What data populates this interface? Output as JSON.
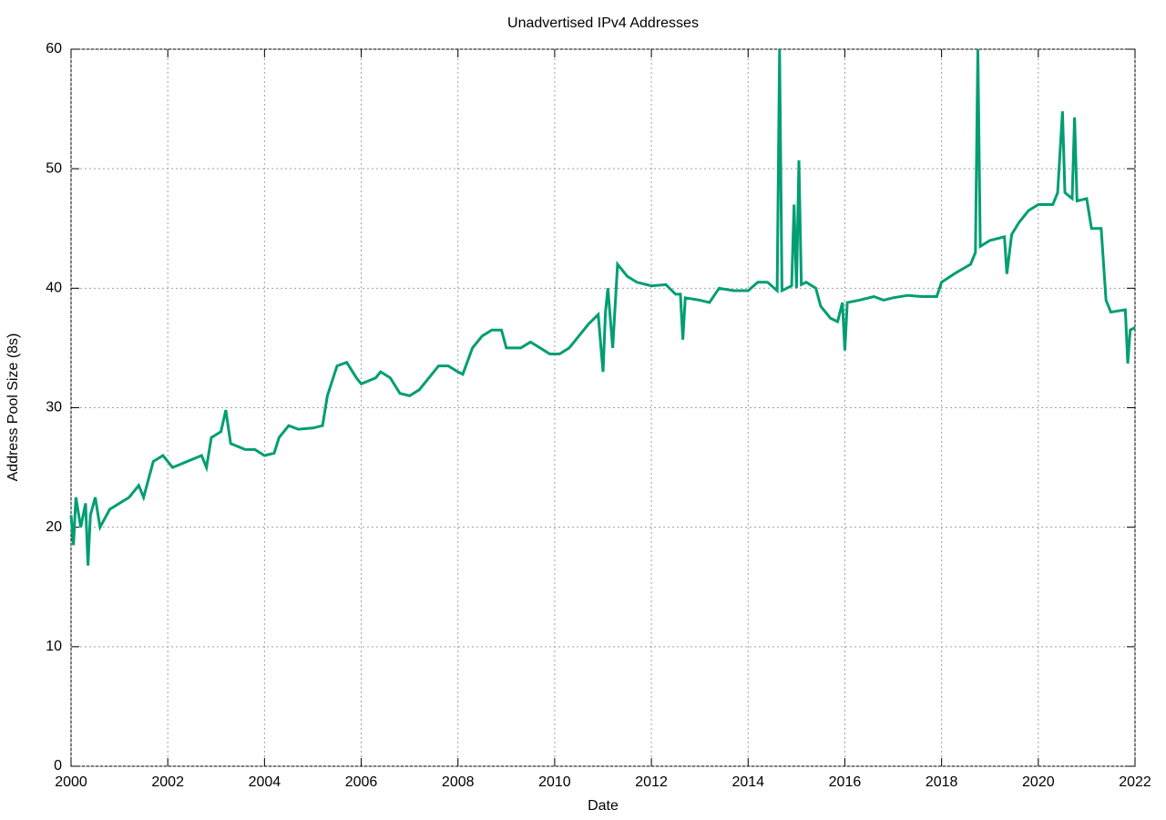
{
  "chart_data": {
    "type": "line",
    "title": "Unadvertised IPv4 Addresses",
    "x_label": "Date",
    "y_label": "Address Pool Size (8s)",
    "xlim": [
      2000,
      2022
    ],
    "xticks": [
      2000,
      2002,
      2004,
      2006,
      2008,
      2010,
      2012,
      2014,
      2016,
      2018,
      2020,
      2022
    ],
    "ylim": [
      0,
      60
    ],
    "yticks": [
      0,
      10,
      20,
      30,
      40,
      50,
      60
    ],
    "grid": true,
    "series": [
      {
        "name": "Unadvertised IPv4 Addresses",
        "color": "#009e73",
        "x": [
          2000.0,
          2000.05,
          2000.1,
          2000.2,
          2000.3,
          2000.35,
          2000.4,
          2000.5,
          2000.6,
          2000.8,
          2001.0,
          2001.2,
          2001.4,
          2001.5,
          2001.6,
          2001.7,
          2001.9,
          2002.1,
          2002.4,
          2002.7,
          2002.8,
          2002.9,
          2003.1,
          2003.2,
          2003.3,
          2003.6,
          2003.8,
          2004.0,
          2004.2,
          2004.3,
          2004.5,
          2004.7,
          2005.0,
          2005.2,
          2005.3,
          2005.5,
          2005.7,
          2005.9,
          2006.0,
          2006.3,
          2006.4,
          2006.6,
          2006.8,
          2007.0,
          2007.2,
          2007.4,
          2007.6,
          2007.8,
          2008.0,
          2008.1,
          2008.3,
          2008.5,
          2008.7,
          2008.9,
          2009.0,
          2009.3,
          2009.5,
          2009.7,
          2009.9,
          2010.1,
          2010.3,
          2010.5,
          2010.7,
          2010.9,
          2011.0,
          2011.05,
          2011.1,
          2011.2,
          2011.3,
          2011.5,
          2011.7,
          2012.0,
          2012.3,
          2012.5,
          2012.6,
          2012.65,
          2012.7,
          2013.0,
          2013.2,
          2013.4,
          2013.7,
          2014.0,
          2014.2,
          2014.4,
          2014.6,
          2014.65,
          2014.7,
          2014.9,
          2014.95,
          2015.0,
          2015.05,
          2015.1,
          2015.2,
          2015.4,
          2015.5,
          2015.7,
          2015.85,
          2015.95,
          2016.0,
          2016.05,
          2016.3,
          2016.6,
          2016.8,
          2017.0,
          2017.3,
          2017.6,
          2017.9,
          2018.0,
          2018.3,
          2018.6,
          2018.7,
          2018.75,
          2018.8,
          2019.0,
          2019.3,
          2019.35,
          2019.45,
          2019.6,
          2019.8,
          2020.0,
          2020.3,
          2020.4,
          2020.5,
          2020.55,
          2020.7,
          2020.75,
          2020.8,
          2021.0,
          2021.1,
          2021.3,
          2021.4,
          2021.5,
          2021.8,
          2021.85,
          2021.9,
          2022.0
        ],
        "values": [
          21,
          18.5,
          22.5,
          20,
          22,
          16.8,
          21,
          22.5,
          20,
          21.5,
          22,
          22.5,
          23.5,
          22.5,
          24,
          25.5,
          26,
          25,
          25.5,
          26,
          25,
          27.5,
          28,
          29.8,
          27,
          26.5,
          26.5,
          26,
          26.2,
          27.5,
          28.5,
          28.2,
          28.3,
          28.5,
          31,
          33.5,
          33.8,
          32.5,
          32,
          32.5,
          33,
          32.5,
          31.2,
          31,
          31.5,
          32.5,
          33.5,
          33.5,
          33,
          32.8,
          35,
          36,
          36.5,
          36.5,
          35,
          35,
          35.5,
          35,
          34.5,
          34.5,
          35,
          36,
          37,
          37.8,
          33,
          38,
          40,
          35,
          42,
          41,
          40.5,
          40.2,
          40.3,
          39.5,
          39.5,
          35.7,
          39.2,
          39,
          38.8,
          40,
          39.8,
          39.8,
          40.5,
          40.5,
          39.8,
          60,
          39.8,
          40.2,
          47,
          40,
          50.7,
          40.3,
          40.5,
          40,
          38.5,
          37.5,
          37.2,
          38.8,
          34.8,
          38.8,
          39,
          39.3,
          39,
          39.2,
          39.4,
          39.3,
          39.3,
          40.5,
          41.3,
          42,
          43,
          60,
          43.5,
          44,
          44.3,
          41.2,
          44.5,
          45.5,
          46.5,
          47,
          47,
          48,
          54.8,
          48,
          47.5,
          54.3,
          47.3,
          47.5,
          45,
          45,
          39,
          38,
          38.2,
          33.7,
          36.5,
          36.7
        ]
      }
    ]
  }
}
